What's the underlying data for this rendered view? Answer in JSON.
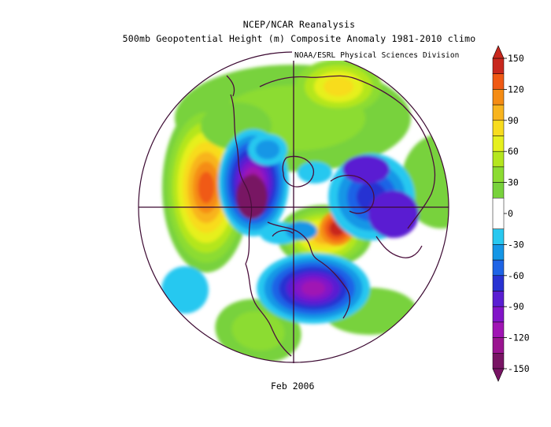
{
  "header": {
    "title_line1": "NCEP/NCAR Reanalysis",
    "title_line2": "500mb Geopotential Height (m) Composite Anomaly 1981-2010 climo",
    "credit": "NOAA/ESRL Physical Sciences Division"
  },
  "footer": {
    "period": "Feb 2006"
  },
  "colorbar": {
    "unit": "m",
    "range": [
      -150,
      150
    ],
    "tick_labels": [
      "150",
      "120",
      "90",
      "60",
      "30",
      "0",
      "-30",
      "-60",
      "-90",
      "-120",
      "-150"
    ],
    "bands": [
      {
        "from": 135,
        "to": 150,
        "color": "#c8281e"
      },
      {
        "from": 120,
        "to": 135,
        "color": "#f05a14"
      },
      {
        "from": 105,
        "to": 120,
        "color": "#f58c14"
      },
      {
        "from": 90,
        "to": 105,
        "color": "#f8b41e"
      },
      {
        "from": 75,
        "to": 90,
        "color": "#f8dc1e"
      },
      {
        "from": 60,
        "to": 75,
        "color": "#e6f01e"
      },
      {
        "from": 45,
        "to": 60,
        "color": "#b4e61e"
      },
      {
        "from": 30,
        "to": 45,
        "color": "#8cdc32"
      },
      {
        "from": 15,
        "to": 30,
        "color": "#78d23c"
      },
      {
        "from": -15,
        "to": 15,
        "color": "#ffffff"
      },
      {
        "from": -30,
        "to": -15,
        "color": "#28c8f0"
      },
      {
        "from": -45,
        "to": -30,
        "color": "#1496e6"
      },
      {
        "from": -60,
        "to": -45,
        "color": "#1e64e6"
      },
      {
        "from": -75,
        "to": -60,
        "color": "#2832d2"
      },
      {
        "from": -90,
        "to": -75,
        "color": "#5a1ed2"
      },
      {
        "from": -105,
        "to": -90,
        "color": "#8214c8"
      },
      {
        "from": -120,
        "to": -105,
        "color": "#a014b4"
      },
      {
        "from": -135,
        "to": -120,
        "color": "#9a1490"
      },
      {
        "from": -150,
        "to": -135,
        "color": "#781464"
      }
    ]
  },
  "map_colors": {
    "coastline": "#4b0f3c",
    "grid_line": "#3c0a32"
  }
}
